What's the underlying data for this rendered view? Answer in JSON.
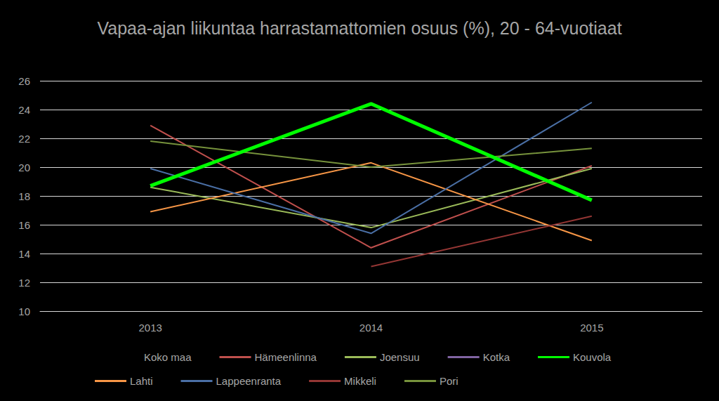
{
  "chart_data": {
    "type": "line",
    "title": "Vapaa-ajan liikuntaa harrastamattomien osuus (%), 20 - 64-vuotiaat",
    "categories": [
      "2013",
      "2014",
      "2015"
    ],
    "ylim": [
      10,
      26
    ],
    "yticks": [
      10,
      12,
      14,
      16,
      18,
      20,
      22,
      24,
      26
    ],
    "grid": true,
    "legend": "bottom",
    "series": [
      {
        "name": "Koko maa",
        "color": "#000000",
        "line_style": "solid",
        "values": [
          null,
          null,
          null
        ]
      },
      {
        "name": "Hämeenlinna",
        "color": "#c0504d",
        "line_style": "solid",
        "values": [
          22.9,
          14.4,
          20.1
        ]
      },
      {
        "name": "Joensuu",
        "color": "#9bbb59",
        "line_style": "solid",
        "values": [
          18.6,
          15.8,
          19.9
        ]
      },
      {
        "name": "Kotka",
        "color": "#8064a2",
        "line_style": "solid",
        "values": [
          null,
          null,
          null
        ]
      },
      {
        "name": "Kouvola",
        "color": "#00ff00",
        "line_style": "thick",
        "values": [
          18.7,
          24.4,
          17.7
        ]
      },
      {
        "name": "Lahti",
        "color": "#f79646",
        "line_style": "solid",
        "values": [
          16.9,
          20.3,
          14.9
        ]
      },
      {
        "name": "Lappeenranta",
        "color": "#4a6fa5",
        "line_style": "solid",
        "values": [
          19.9,
          15.4,
          24.5
        ]
      },
      {
        "name": "Mikkeli",
        "color": "#943634",
        "line_style": "solid",
        "values": [
          null,
          13.1,
          16.6
        ]
      },
      {
        "name": "Pori",
        "color": "#77933c",
        "line_style": "solid",
        "values": [
          21.8,
          20.0,
          21.3
        ]
      }
    ]
  }
}
